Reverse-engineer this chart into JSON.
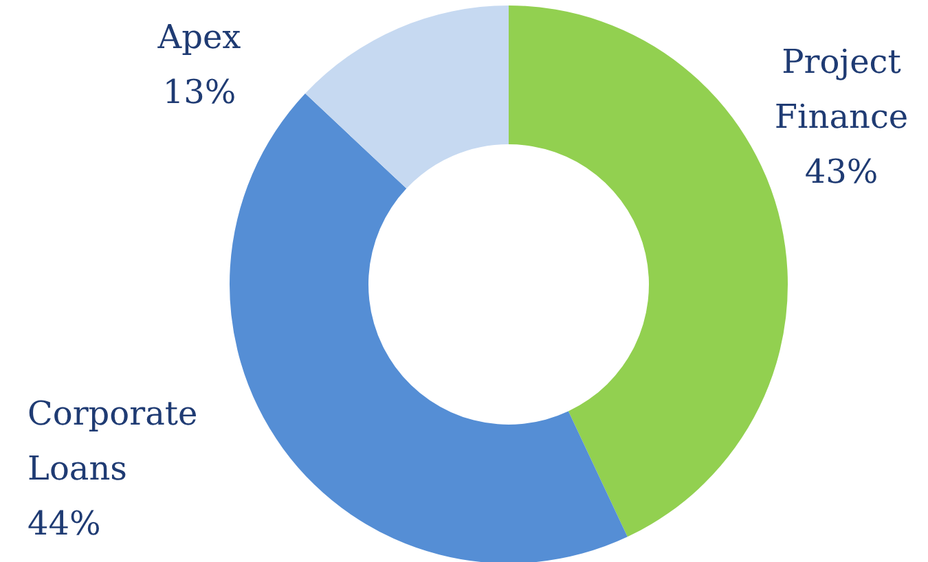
{
  "chart_data": {
    "type": "donut",
    "categories": [
      "Project Finance",
      "Corporate Loans",
      "Apex"
    ],
    "values": [
      43,
      44,
      13
    ],
    "value_labels": [
      "43%",
      "44%",
      "13%"
    ],
    "colors": [
      "#92d050",
      "#558ed5",
      "#c6d9f1"
    ]
  }
}
